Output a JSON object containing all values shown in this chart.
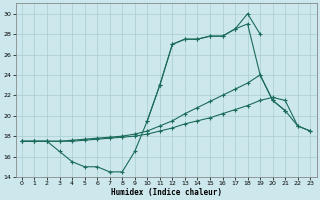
{
  "xlabel": "Humidex (Indice chaleur)",
  "x": [
    0,
    1,
    2,
    3,
    4,
    5,
    6,
    7,
    8,
    9,
    10,
    11,
    12,
    13,
    14,
    15,
    16,
    17,
    18,
    19,
    20,
    21,
    22,
    23
  ],
  "line1": [
    17.5,
    17.5,
    17.5,
    16.5,
    15.5,
    15.0,
    15.0,
    14.5,
    14.5,
    16.5,
    19.5,
    23.0,
    27.0,
    27.5,
    27.5,
    27.8,
    27.8,
    28.5,
    30.0,
    28.0,
    null,
    null,
    null,
    null
  ],
  "line2": [
    null,
    null,
    null,
    null,
    null,
    null,
    null,
    null,
    null,
    null,
    19.5,
    23.0,
    27.0,
    27.5,
    27.5,
    27.8,
    27.8,
    28.5,
    29.0,
    24.0,
    21.5,
    20.5,
    null,
    null
  ],
  "line3": [
    17.5,
    17.5,
    17.5,
    17.5,
    17.6,
    17.7,
    17.8,
    17.9,
    18.0,
    18.2,
    18.5,
    19.0,
    19.5,
    20.2,
    20.8,
    21.4,
    22.0,
    22.6,
    23.2,
    24.0,
    21.5,
    20.5,
    19.0,
    18.5
  ],
  "line4": [
    17.5,
    17.5,
    17.5,
    17.5,
    17.5,
    17.6,
    17.7,
    17.8,
    17.9,
    18.0,
    18.2,
    18.5,
    18.8,
    19.2,
    19.5,
    19.8,
    20.2,
    20.6,
    21.0,
    21.5,
    21.8,
    21.5,
    19.0,
    18.5
  ],
  "ylim": [
    14,
    31
  ],
  "xlim": [
    -0.5,
    23.5
  ],
  "yticks": [
    14,
    16,
    18,
    20,
    22,
    24,
    26,
    28,
    30
  ],
  "xticks": [
    0,
    1,
    2,
    3,
    4,
    5,
    6,
    7,
    8,
    9,
    10,
    11,
    12,
    13,
    14,
    15,
    16,
    17,
    18,
    19,
    20,
    21,
    22,
    23
  ],
  "line_color": "#1a6b5a",
  "bg_color": "#cde8ec",
  "grid_color": "#a8cdd2"
}
